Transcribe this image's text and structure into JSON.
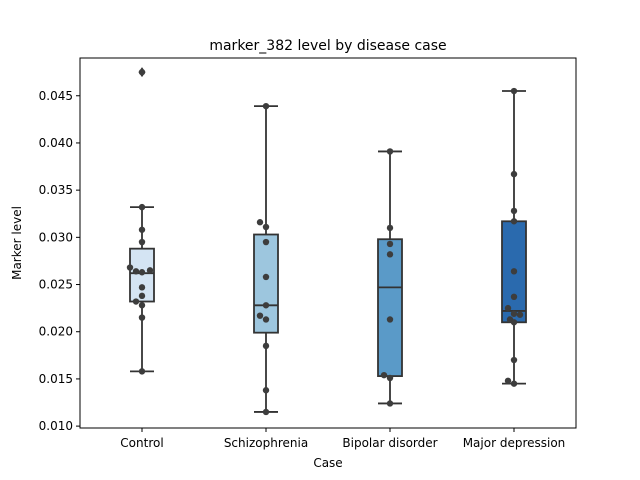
{
  "chart_data": {
    "type": "box",
    "title": "marker_382 level by disease case",
    "xlabel": "Case",
    "ylabel": "Marker level",
    "categories": [
      "Control",
      "Schizophrenia",
      "Bipolar disorder",
      "Major depression"
    ],
    "ylim": [
      0.0098,
      0.049
    ],
    "yticks": [
      0.01,
      0.015,
      0.02,
      0.025,
      0.03,
      0.035,
      0.04,
      0.045
    ],
    "ytick_labels": [
      "0.010",
      "0.015",
      "0.020",
      "0.025",
      "0.030",
      "0.035",
      "0.040",
      "0.045"
    ],
    "grid": false,
    "boxes": [
      {
        "category": "Control",
        "whisker_low": 0.0158,
        "q1": 0.0232,
        "median": 0.0262,
        "q3": 0.0288,
        "whisker_high": 0.0332,
        "outliers": [
          0.0475
        ],
        "color": "#d4e4f3"
      },
      {
        "category": "Schizophrenia",
        "whisker_low": 0.0115,
        "q1": 0.0199,
        "median": 0.0228,
        "q3": 0.0303,
        "whisker_high": 0.0439,
        "outliers": [],
        "color": "#9dc6de"
      },
      {
        "category": "Bipolar disorder",
        "whisker_low": 0.0124,
        "q1": 0.0153,
        "median": 0.0247,
        "q3": 0.0298,
        "whisker_high": 0.0391,
        "outliers": [],
        "color": "#5a9ac8"
      },
      {
        "category": "Major depression",
        "whisker_low": 0.0145,
        "q1": 0.021,
        "median": 0.0222,
        "q3": 0.0317,
        "whisker_high": 0.0455,
        "outliers": [],
        "color": "#2a6aae"
      }
    ],
    "points": [
      {
        "category": "Control",
        "values": [
          0.0475,
          0.0332,
          0.0308,
          0.0295,
          0.0268,
          0.0264,
          0.0263,
          0.0265,
          0.0247,
          0.0238,
          0.0232,
          0.0228,
          0.0215,
          0.0158
        ],
        "offsets": [
          0,
          0,
          0,
          0,
          -12,
          -6,
          0,
          8,
          0,
          0,
          -6,
          0,
          0,
          0
        ]
      },
      {
        "category": "Schizophrenia",
        "values": [
          0.0439,
          0.0316,
          0.0311,
          0.0295,
          0.0258,
          0.0228,
          0.0217,
          0.0213,
          0.0185,
          0.0138,
          0.0115
        ],
        "offsets": [
          0,
          -6,
          0,
          0,
          0,
          0,
          -6,
          0,
          0,
          0,
          0
        ]
      },
      {
        "category": "Bipolar disorder",
        "values": [
          0.0391,
          0.031,
          0.0293,
          0.0282,
          0.0213,
          0.0154,
          0.0151,
          0.0124
        ],
        "offsets": [
          0,
          0,
          0,
          0,
          0,
          -6,
          0,
          0
        ]
      },
      {
        "category": "Major depression",
        "values": [
          0.0455,
          0.0367,
          0.0328,
          0.0317,
          0.0264,
          0.0237,
          0.0225,
          0.0219,
          0.0218,
          0.0213,
          0.021,
          0.017,
          0.0148,
          0.0145
        ],
        "offsets": [
          0,
          0,
          0,
          0,
          0,
          0,
          -6,
          0,
          6,
          -4,
          0,
          0,
          -6,
          0
        ]
      }
    ],
    "point_color": "#3d3d3d",
    "line_color": "#333333"
  }
}
